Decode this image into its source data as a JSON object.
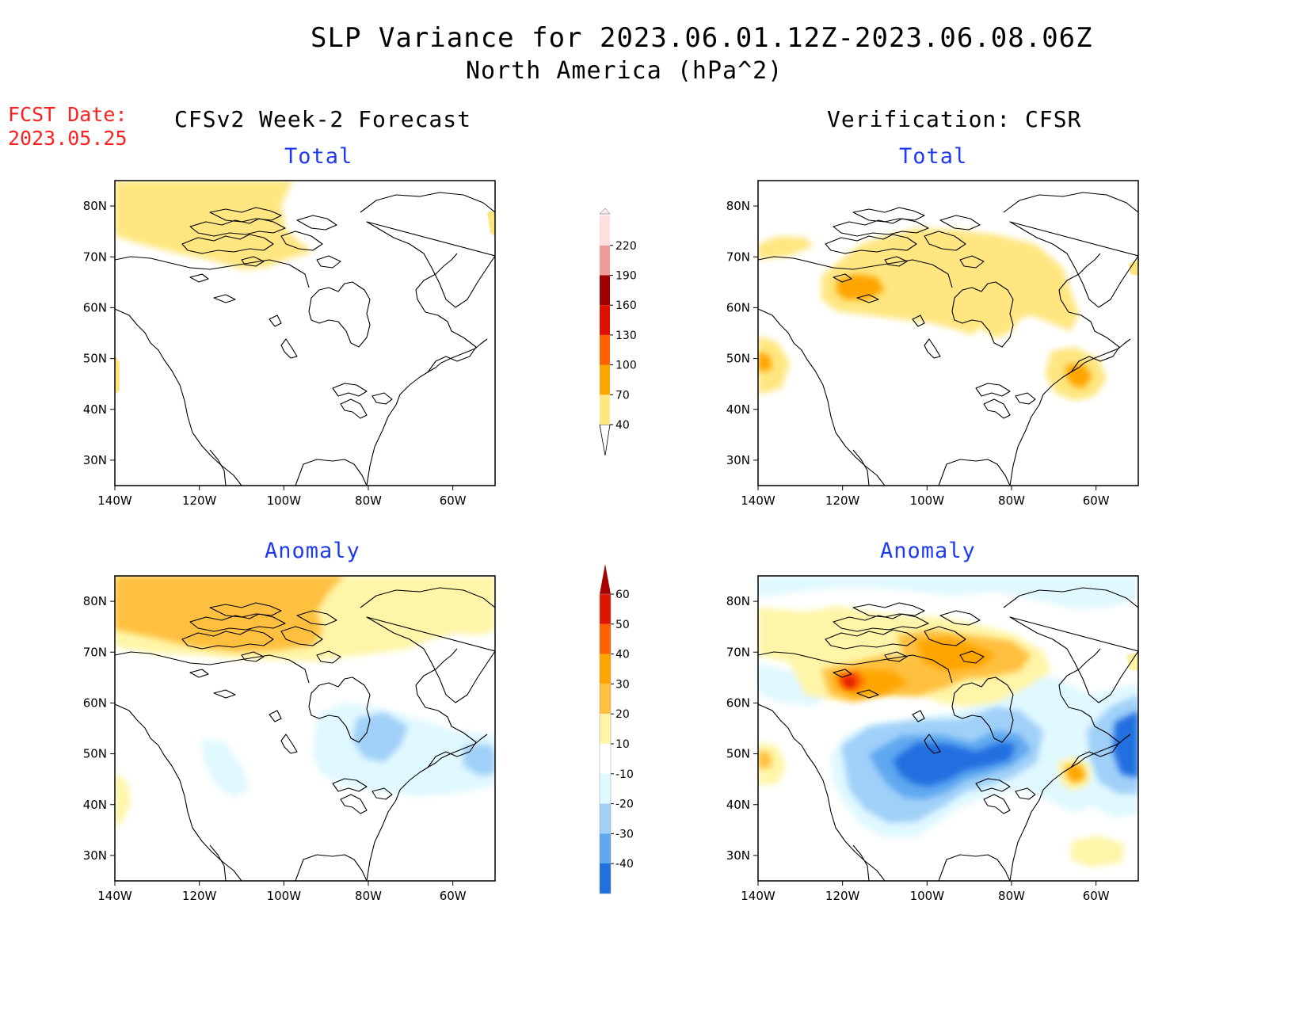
{
  "title": "SLP Variance for 2023.06.01.12Z-2023.06.08.06Z",
  "subtitle": "North America (hPa^2)",
  "fcst_date_label": "FCST Date:",
  "fcst_date_value": "2023.05.25",
  "left_column_title": "CFSv2 Week-2 Forecast",
  "right_column_title": "Verification: CFSR",
  "panels": {
    "forecast_total": "Total",
    "verification_total": "Total",
    "forecast_anomaly": "Anomaly",
    "verification_anomaly": "Anomaly"
  },
  "axes": {
    "lat_labels": [
      "80N",
      "70N",
      "60N",
      "50N",
      "40N",
      "30N"
    ],
    "lon_labels": [
      "140W",
      "120W",
      "100W",
      "80W",
      "60W"
    ],
    "lat_values": [
      80,
      70,
      60,
      50,
      40,
      30
    ],
    "lon_values": [
      -140,
      -120,
      -100,
      -80,
      -60
    ],
    "lat_range": [
      25,
      85
    ],
    "lon_range": [
      -140,
      -50
    ]
  },
  "colorbar_total": {
    "levels": [
      "40",
      "70",
      "100",
      "130",
      "160",
      "190",
      "220"
    ],
    "colors": [
      "#ffe680",
      "#ffa500",
      "#ff6000",
      "#e01000",
      "#a00000",
      "#f09a9a",
      "#fde0de"
    ]
  },
  "colorbar_anomaly": {
    "levels": [
      "60",
      "50",
      "40",
      "30",
      "20",
      "10",
      "-10",
      "-20",
      "-30",
      "-40"
    ],
    "colors": [
      "#a80000",
      "#e01500",
      "#ff6000",
      "#ffa500",
      "#ffc040",
      "#fff5a8",
      "#ffffff",
      "#e0f8ff",
      "#a0d0f8",
      "#60a8f0",
      "#2070e0",
      "#1060d8"
    ]
  }
}
